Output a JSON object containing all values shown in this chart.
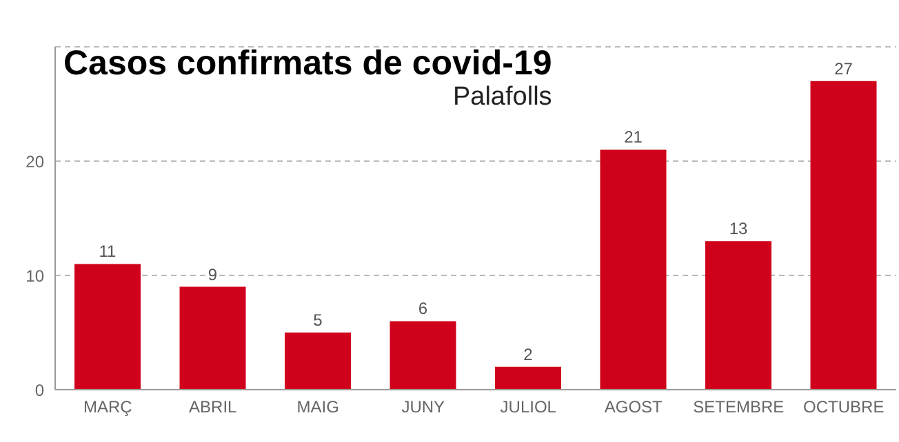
{
  "chart_data": {
    "type": "bar",
    "title": "Casos confirmats de covid-19",
    "subtitle": "Palafolls",
    "categories": [
      "MARÇ",
      "ABRIL",
      "MAIG",
      "JUNY",
      "JULIOL",
      "AGOST",
      "SETEMBRE",
      "OCTUBRE"
    ],
    "values": [
      11,
      9,
      5,
      6,
      2,
      21,
      13,
      27
    ],
    "color": "#d0021b",
    "ylim": [
      0,
      30
    ],
    "yticks": [
      0,
      10,
      20
    ],
    "grid": "y",
    "data_labels": true
  }
}
